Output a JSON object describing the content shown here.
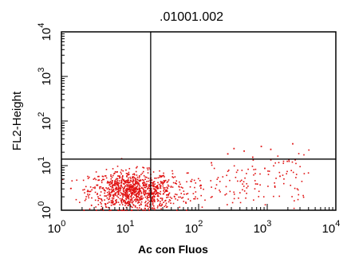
{
  "chart_data": {
    "type": "scatter",
    "title": ".01001.002",
    "xlabel": "Ac con Fluos",
    "ylabel": "FL2-Height",
    "xscale": "log",
    "yscale": "log",
    "xlim": [
      1,
      10000
    ],
    "ylim": [
      1,
      10000
    ],
    "x_ticks": [
      {
        "base": "10",
        "exp": "0",
        "value": 1
      },
      {
        "base": "10",
        "exp": "1",
        "value": 10
      },
      {
        "base": "10",
        "exp": "2",
        "value": 100
      },
      {
        "base": "10",
        "exp": "3",
        "value": 1000
      },
      {
        "base": "10",
        "exp": "4",
        "value": 10000
      }
    ],
    "y_ticks": [
      {
        "base": "10",
        "exp": "0",
        "value": 1
      },
      {
        "base": "10",
        "exp": "1",
        "value": 10
      },
      {
        "base": "10",
        "exp": "2",
        "value": 100
      },
      {
        "base": "10",
        "exp": "3",
        "value": 1000
      },
      {
        "base": "10",
        "exp": "4",
        "value": 10000
      }
    ],
    "quadrant_gates": {
      "x": 20,
      "y": 14
    },
    "point_color": "#e01010",
    "population": {
      "count": 900,
      "center_log": [
        1.0,
        0.45
      ],
      "spread_log": [
        0.3,
        0.22
      ],
      "tail_count": 230,
      "tail_x_log_range": [
        1.3,
        3.6
      ]
    },
    "points": [
      {
        "x": 150,
        "y": 12
      },
      {
        "x": 260,
        "y": 19
      },
      {
        "x": 320,
        "y": 25
      },
      {
        "x": 450,
        "y": 22
      },
      {
        "x": 800,
        "y": 28
      },
      {
        "x": 1100,
        "y": 24
      },
      {
        "x": 2300,
        "y": 32
      },
      {
        "x": 600,
        "y": 16
      },
      {
        "x": 900,
        "y": 9
      },
      {
        "x": 1500,
        "y": 6
      },
      {
        "x": 700,
        "y": 4
      },
      {
        "x": 2500,
        "y": 14
      }
    ],
    "grid": false,
    "legend": "none"
  }
}
